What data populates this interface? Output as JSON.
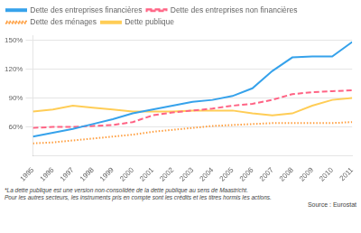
{
  "chart_data": {
    "type": "line",
    "x": [
      1995,
      1996,
      1997,
      1998,
      1999,
      2000,
      2001,
      2002,
      2003,
      2004,
      2005,
      2006,
      2007,
      2008,
      2009,
      2010,
      2011
    ],
    "xlim": [
      1995,
      2011
    ],
    "xticks": [
      1995,
      1996,
      1997,
      1998,
      1999,
      2000,
      2001,
      2002,
      2003,
      2004,
      2005,
      2006,
      2007,
      2008,
      2009,
      2010,
      2011
    ],
    "ylim": [
      30,
      155
    ],
    "yticks": [
      {
        "value": 60,
        "label": "60%"
      },
      {
        "value": 90,
        "label": "90%"
      },
      {
        "value": 120,
        "label": "120%"
      },
      {
        "value": 150,
        "label": "150%"
      }
    ],
    "series": [
      {
        "name": "Dette des entreprises financières",
        "values": [
          50,
          54,
          58,
          63,
          68,
          74,
          78,
          82,
          86,
          88,
          92,
          100,
          118,
          132,
          133,
          133,
          148
        ],
        "line_style": "solid"
      },
      {
        "name": "Dette des entreprises non financières",
        "values": [
          59,
          60,
          60,
          61,
          62,
          65,
          72,
          75,
          77,
          79,
          82,
          84,
          88,
          94,
          96,
          97,
          98
        ],
        "line_style": "dashed"
      },
      {
        "name": "Dette des ménages",
        "values": [
          43,
          44,
          46,
          48,
          50,
          52,
          55,
          57,
          59,
          61,
          62,
          63,
          64,
          64,
          64,
          64,
          65
        ],
        "line_style": "dotted"
      },
      {
        "name": "Dette publique",
        "values": [
          76,
          78,
          82,
          80,
          78,
          76,
          76,
          76,
          77,
          77,
          77,
          74,
          72,
          74,
          82,
          88,
          90
        ],
        "line_style": "solid"
      }
    ],
    "grid": "y",
    "legend": "upper left",
    "annotations": [
      "*La dette publique est une version non-consolidée de la dette publique au sens de Maastricht.",
      "Pour les autres secteurs, les instruments pris en compte sont les crédits et les titres hormis les actions.",
      "Source : Eurostat"
    ]
  }
}
